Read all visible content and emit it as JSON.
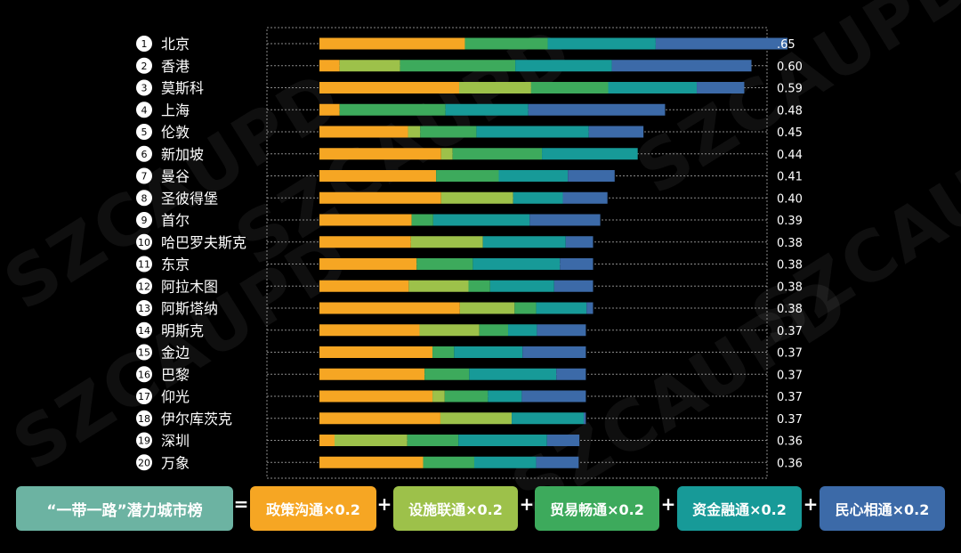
{
  "watermark": "SZCAUPD",
  "chart_data": {
    "type": "bar",
    "orientation": "horizontal",
    "stacked": true,
    "grid": true,
    "categories": [
      "北京",
      "香港",
      "莫斯科",
      "上海",
      "伦敦",
      "新加坡",
      "曼谷",
      "圣彼得堡",
      "首尔",
      "哈巴罗夫斯克",
      "东京",
      "阿拉木图",
      "阿斯塔纳",
      "明斯克",
      "金边",
      "巴黎",
      "仰光",
      "伊尔库茨克",
      "深圳",
      "万象"
    ],
    "ranks": [
      "1",
      "2",
      "3",
      "4",
      "5",
      "6",
      "7",
      "8",
      "9",
      "10",
      "11",
      "12",
      "13",
      "14",
      "15",
      "16",
      "17",
      "18",
      "19",
      "20"
    ],
    "value_labels": [
      ".65",
      "0.60",
      "0.59",
      "0.48",
      "0.45",
      "0.44",
      "0.41",
      "0.40",
      "0.39",
      "0.38",
      "0.38",
      "0.38",
      "0.38",
      "0.37",
      "0.37",
      "0.37",
      "0.37",
      "0.37",
      "0.36",
      "0.36"
    ],
    "totals": [
      0.65,
      0.6,
      0.59,
      0.48,
      0.45,
      0.44,
      0.41,
      0.4,
      0.39,
      0.38,
      0.38,
      0.38,
      0.38,
      0.37,
      0.37,
      0.37,
      0.37,
      0.37,
      0.36,
      0.36
    ],
    "xlim": [
      0,
      0.65
    ],
    "series": [
      {
        "name": "政策沟通",
        "color": "#F6A623",
        "values": [
          0.202,
          0.028,
          0.194,
          0.028,
          0.123,
          0.169,
          0.162,
          0.169,
          0.128,
          0.127,
          0.135,
          0.124,
          0.195,
          0.139,
          0.157,
          0.146,
          0.157,
          0.168,
          0.021,
          0.144
        ]
      },
      {
        "name": "设施联通",
        "color": "#9DC14A",
        "values": [
          0.0,
          0.084,
          0.1,
          0.0,
          0.017,
          0.016,
          0.0,
          0.1,
          0.0,
          0.1,
          0.0,
          0.083,
          0.076,
          0.083,
          0.0,
          0.0,
          0.017,
          0.099,
          0.101,
          0.0
        ]
      },
      {
        "name": "贸易畅通",
        "color": "#3DAA5C",
        "values": [
          0.115,
          0.16,
          0.107,
          0.147,
          0.078,
          0.124,
          0.087,
          0.0,
          0.03,
          0.0,
          0.078,
          0.03,
          0.03,
          0.04,
          0.03,
          0.062,
          0.06,
          0.0,
          0.071,
          0.071
        ]
      },
      {
        "name": "资金融通",
        "color": "#179A98",
        "values": [
          0.15,
          0.134,
          0.123,
          0.115,
          0.156,
          0.133,
          0.096,
          0.069,
          0.134,
          0.115,
          0.121,
          0.089,
          0.07,
          0.04,
          0.095,
          0.121,
          0.047,
          0.1,
          0.123,
          0.086
        ]
      },
      {
        "name": "民心相通",
        "color": "#3C6AA8",
        "values": [
          0.183,
          0.194,
          0.066,
          0.19,
          0.076,
          0.0,
          0.065,
          0.062,
          0.098,
          0.038,
          0.046,
          0.054,
          0.009,
          0.068,
          0.088,
          0.041,
          0.089,
          0.003,
          0.045,
          0.059
        ]
      }
    ]
  },
  "formula": {
    "title": "“一带一路”潜力城市榜",
    "equals": "=",
    "plus": "+",
    "terms": [
      "政策沟通×0.2",
      "设施联通×0.2",
      "贸易畅通×0.2",
      "资金融通×0.2",
      "民心相通×0.2"
    ],
    "title_color": "#6CB3A2",
    "term_colors": [
      "#F6A623",
      "#9DC14A",
      "#3DAA5C",
      "#179A98",
      "#3C6AA8"
    ]
  }
}
